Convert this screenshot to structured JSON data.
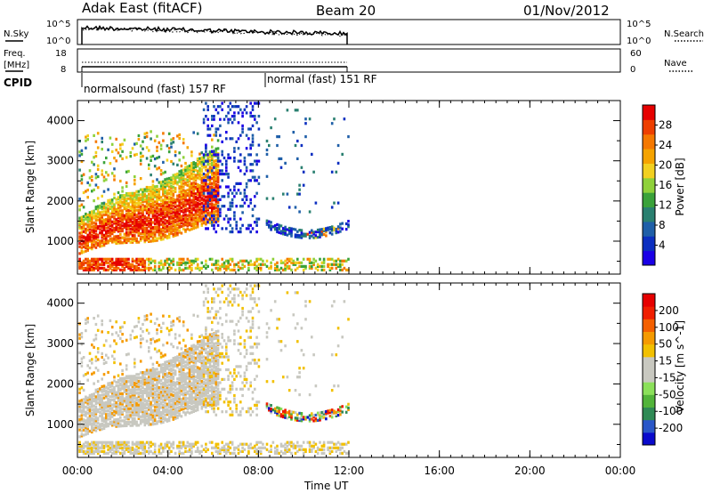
{
  "header": {
    "station": "Adak East (fitACF)",
    "beam": "Beam 20",
    "date": "01/Nov/2012"
  },
  "noise_panel": {
    "left_label": "N.Sky",
    "right_label": "N.Search",
    "left_ticks": [
      "10^5",
      "10^0"
    ],
    "right_ticks": [
      "10^5",
      "10^0"
    ]
  },
  "freq_panel": {
    "left_label_1": "Freq.",
    "left_label_2": "[MHz]",
    "right_label": "Nave",
    "left_ticks": [
      "18",
      "8"
    ],
    "right_ticks": [
      "60",
      "0"
    ]
  },
  "cpid_panel": {
    "label": "CPID",
    "programs": [
      "normalsound (fast) 157 RF",
      "normal (fast) 151 RF"
    ]
  },
  "chart_data": [
    {
      "type": "heatmap",
      "title": "",
      "ylabel": "Slant Range [km]",
      "ylim": [
        180,
        4500
      ],
      "yticks": [
        "1000",
        "2000",
        "3000",
        "4000"
      ],
      "colorbar": {
        "label": "Power [dB]",
        "ticks": [
          "4",
          "8",
          "12",
          "16",
          "20",
          "24",
          "28"
        ],
        "colors": [
          "#1a00e6",
          "#0c2fc0",
          "#1f5fa8",
          "#2a8070",
          "#3aa23a",
          "#8fd13a",
          "#f2d020",
          "#f5a300",
          "#f57800",
          "#ee3f00",
          "#e60000"
        ]
      }
    },
    {
      "type": "heatmap",
      "title": "",
      "ylabel": "Slant Range [km]",
      "ylim": [
        180,
        4500
      ],
      "yticks": [
        "1000",
        "2000",
        "3000",
        "4000"
      ],
      "colorbar": {
        "label": "Velocity [m s^-1]",
        "ticks": [
          "200",
          "100",
          "50",
          "15",
          "-15",
          "-50",
          "-100",
          "-200"
        ],
        "colors": [
          "#0a0acc",
          "#2a57c8",
          "#2f8a55",
          "#52b43a",
          "#8be05a",
          "#c8c8c0",
          "#c8c8c0",
          "#f2c000",
          "#f59a00",
          "#f56000",
          "#f01e00",
          "#e60000"
        ]
      }
    }
  ],
  "x_axis": {
    "label": "Time UT",
    "ticks": [
      "00:00",
      "04:00",
      "08:00",
      "12:00",
      "16:00",
      "20:00",
      "00:00"
    ]
  }
}
